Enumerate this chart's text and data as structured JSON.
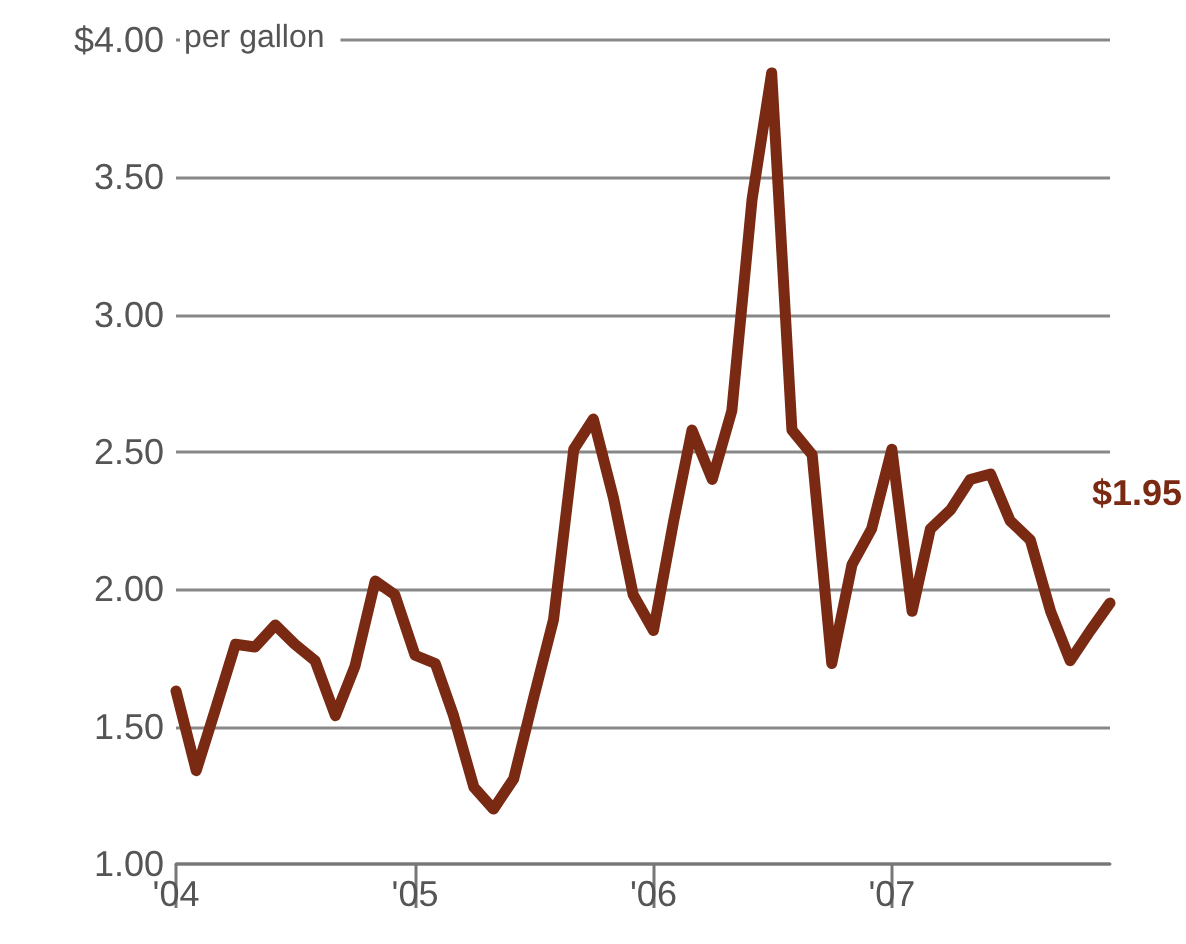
{
  "chart_data": {
    "type": "line",
    "ylabel": "per gallon",
    "x": [
      "2004-01",
      "2004-02",
      "2004-03",
      "2004-04",
      "2004-05",
      "2004-06",
      "2004-07",
      "2004-08",
      "2004-09",
      "2004-10",
      "2004-11",
      "2004-12",
      "2005-01",
      "2005-02",
      "2005-03",
      "2005-04",
      "2005-05",
      "2005-06",
      "2005-07",
      "2005-08",
      "2005-09",
      "2005-10",
      "2005-11",
      "2005-12",
      "2006-01",
      "2006-02",
      "2006-03",
      "2006-04",
      "2006-05",
      "2006-06",
      "2006-07",
      "2006-08",
      "2006-09",
      "2006-10",
      "2006-11",
      "2006-12",
      "2007-01",
      "2007-02",
      "2007-03",
      "2007-04",
      "2007-05",
      "2007-06",
      "2007-07",
      "2007-08",
      "2007-09",
      "2007-10",
      "2007-11",
      "2007-12"
    ],
    "series": [
      {
        "color": "#7a2a12",
        "values": [
          1.63,
          1.34,
          1.56,
          1.8,
          1.79,
          1.87,
          1.8,
          1.74,
          1.54,
          1.72,
          2.03,
          1.98,
          1.76,
          1.73,
          1.54,
          1.28,
          1.2,
          1.31,
          1.6,
          1.89,
          2.51,
          2.62,
          2.33,
          1.98,
          1.85,
          2.25,
          2.58,
          2.4,
          2.65,
          3.42,
          3.88,
          2.58,
          2.49,
          1.73,
          2.09,
          2.22,
          2.51,
          1.92,
          2.22,
          2.29,
          2.4,
          2.42,
          2.25,
          2.18,
          1.92,
          1.74,
          1.85,
          1.95
        ]
      }
    ],
    "xlim": [
      "2004-01",
      "2007-12"
    ],
    "xticks": [
      {
        "value": "2004-01",
        "label": "'04"
      },
      {
        "value": "2005-01",
        "label": "'05"
      },
      {
        "value": "2006-01",
        "label": "'06"
      },
      {
        "value": "2007-01",
        "label": "'07"
      }
    ],
    "ylim": [
      1,
      4
    ],
    "yticks": [
      {
        "value": 1,
        "label": "1.00"
      },
      {
        "value": 1.5,
        "label": "1.50"
      },
      {
        "value": 2,
        "label": "2.00"
      },
      {
        "value": 2.5,
        "label": "2.50"
      },
      {
        "value": 3,
        "label": "3.00"
      },
      {
        "value": 3.5,
        "label": "3.50"
      },
      {
        "value": 4,
        "label": "$4.00"
      }
    ],
    "grid": "y",
    "marker": "none",
    "line_style": "solid",
    "annotations": [
      {
        "text": "$1.95",
        "x": "2007-12",
        "y": 1.95
      }
    ]
  }
}
